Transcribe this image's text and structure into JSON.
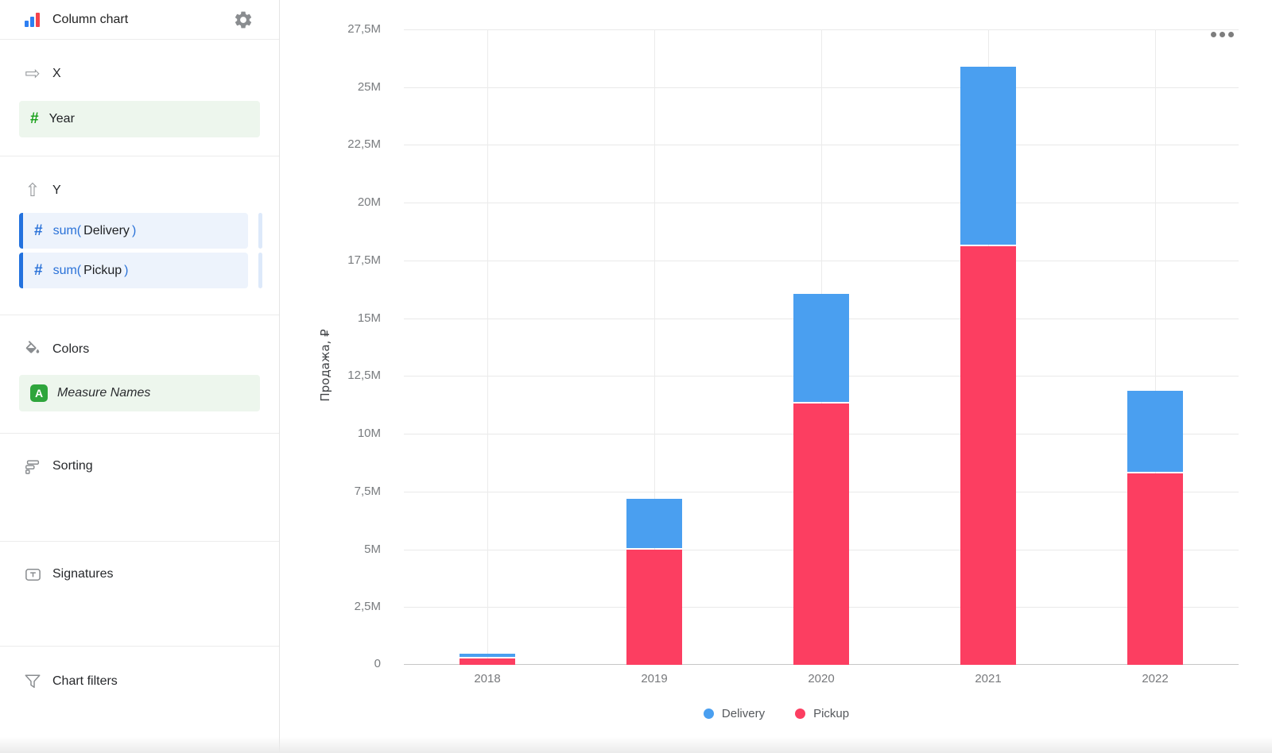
{
  "header": {
    "title": "Column chart"
  },
  "sidebar": {
    "x": {
      "label": "X",
      "field": {
        "name": "Year",
        "icon": "number-hash-icon"
      }
    },
    "y": {
      "label": "Y",
      "fields": [
        {
          "fn_open": "sum(",
          "name": "Delivery",
          "fn_close": ")",
          "icon": "number-hash-icon"
        },
        {
          "fn_open": "sum(",
          "name": "Pickup",
          "fn_close": ")",
          "icon": "number-hash-icon"
        }
      ]
    },
    "colors": {
      "label": "Colors",
      "field": {
        "badge": "A",
        "name": "Measure Names"
      }
    },
    "sorting": {
      "label": "Sorting"
    },
    "signatures": {
      "label": "Signatures"
    },
    "filters": {
      "label": "Chart filters"
    }
  },
  "chart": {
    "menu_icon": "ellipsis-menu"
  },
  "chart_data": {
    "type": "bar",
    "stacked": true,
    "categories": [
      "2018",
      "2019",
      "2020",
      "2021",
      "2022"
    ],
    "series": [
      {
        "name": "Delivery",
        "color": "#4A9FF0",
        "values_m": [
          0.15,
          2.1,
          4.7,
          7.7,
          3.5
        ]
      },
      {
        "name": "Pickup",
        "color": "#FC3E61",
        "values_m": [
          0.28,
          5.0,
          11.3,
          18.1,
          8.3
        ]
      }
    ],
    "stack_order_bottom_to_top": [
      "Pickup",
      "Delivery"
    ],
    "ylabel": "Продажа, ₽",
    "ylim_m": [
      0,
      27.5
    ],
    "yticks": [
      {
        "value": 0,
        "label": "0"
      },
      {
        "value": 2.5,
        "label": "2,5M"
      },
      {
        "value": 5,
        "label": "5M"
      },
      {
        "value": 7.5,
        "label": "7,5M"
      },
      {
        "value": 10,
        "label": "10M"
      },
      {
        "value": 12.5,
        "label": "12,5M"
      },
      {
        "value": 15,
        "label": "15M"
      },
      {
        "value": 17.5,
        "label": "17,5M"
      },
      {
        "value": 20,
        "label": "20M"
      },
      {
        "value": 22.5,
        "label": "22,5M"
      },
      {
        "value": 25,
        "label": "25M"
      },
      {
        "value": 27.5,
        "label": "27,5M"
      }
    ],
    "grid": true,
    "legend_position": "bottom"
  }
}
